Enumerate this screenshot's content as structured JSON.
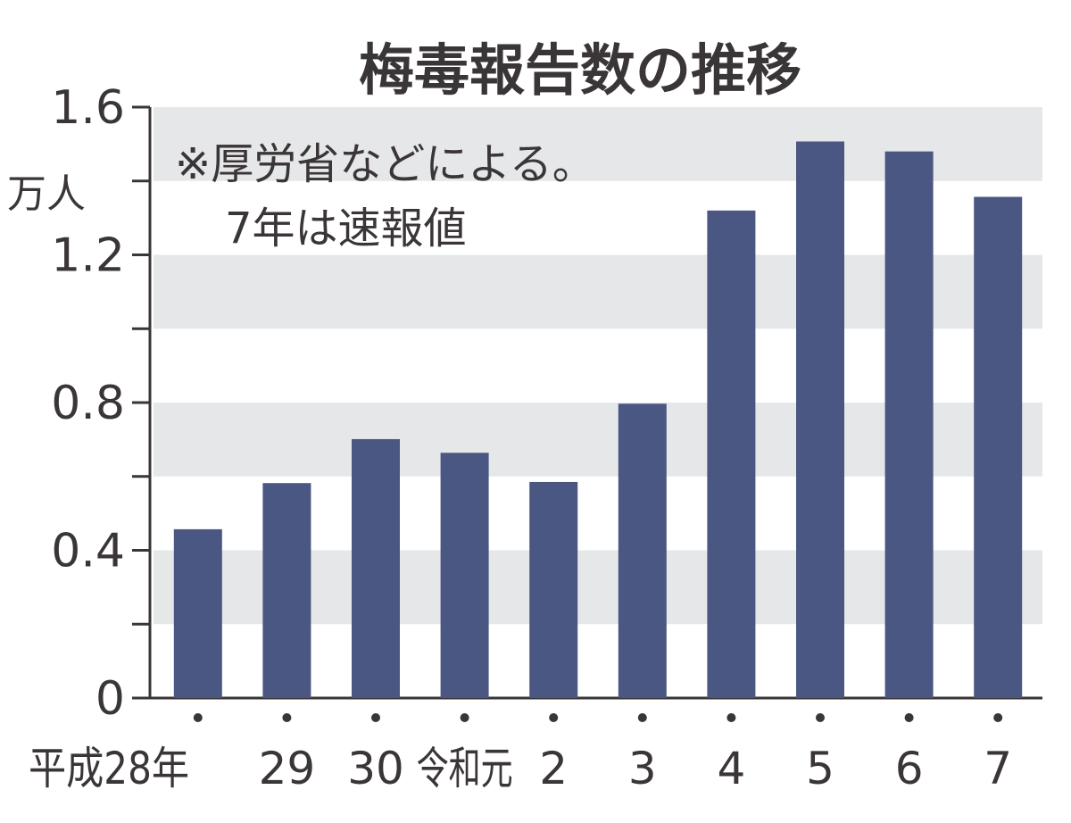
{
  "chart_data": {
    "type": "bar",
    "title": "梅毒報告数の推移",
    "unit_label": "万人",
    "note_lines": [
      "※厚労省などによる。",
      "7年は速報値"
    ],
    "categories": [
      "平成28年",
      "29",
      "30",
      "令和元",
      "2",
      "3",
      "4",
      "5",
      "6",
      "7"
    ],
    "values": [
      0.457,
      0.582,
      0.701,
      0.664,
      0.585,
      0.797,
      1.32,
      1.507,
      1.48,
      1.357
    ],
    "ylim": [
      0,
      1.6
    ],
    "yticks": [
      "0",
      "0.4",
      "0.8",
      "1.2",
      "1.6"
    ],
    "grid": "alternating horizontal bands",
    "colors": {
      "bar": "#4a5782",
      "band": "#e6e7e9",
      "axis": "#3a3536",
      "text": "#3a3536"
    }
  }
}
